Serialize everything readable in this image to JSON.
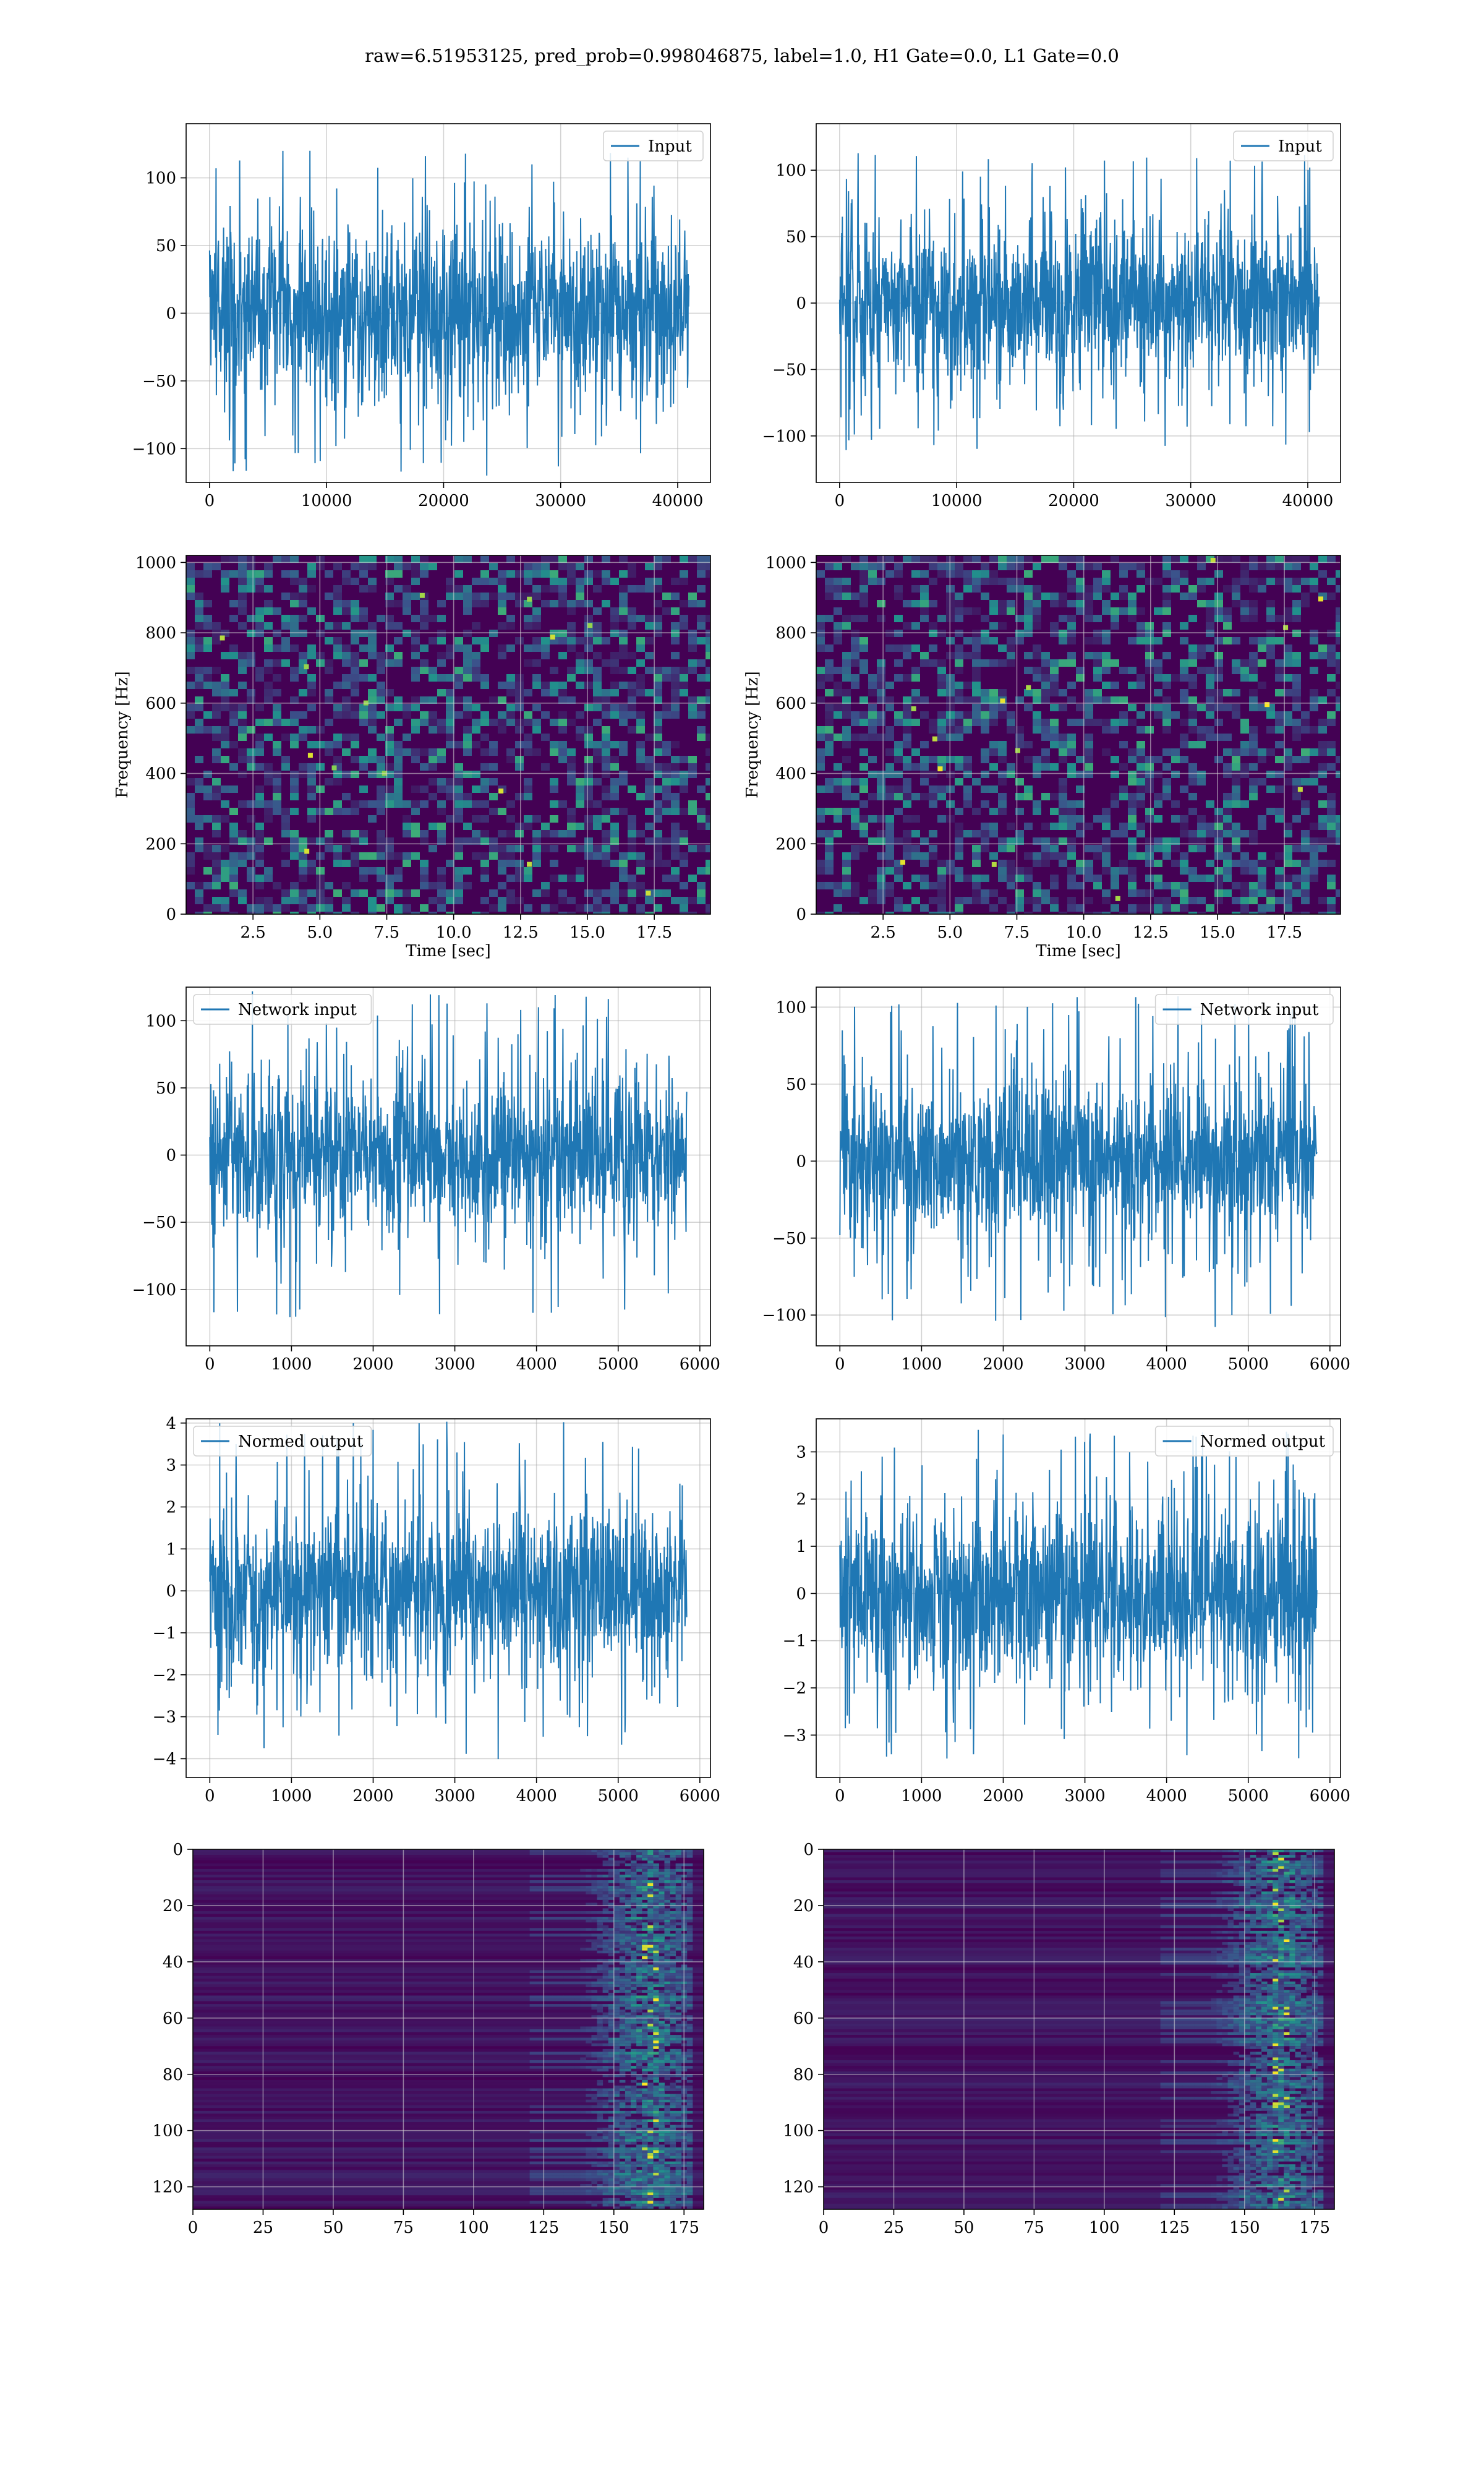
{
  "figure": {
    "title": "raw=6.51953125, pred_prob=0.998046875, label=1.0, H1 Gate=0.0, L1 Gate=0.0"
  },
  "colors": {
    "signal": "#1f77b4",
    "viridis_low": "#440154",
    "grid": "#b0b0b0"
  },
  "chart_data": [
    {
      "id": "input-left",
      "type": "line",
      "title": "",
      "xlabel": "",
      "ylabel": "",
      "legend": "top-right",
      "grid": true,
      "series": [
        {
          "name": "Input",
          "samples": 40960,
          "amp": 32,
          "peak": 120
        }
      ],
      "xlim": [
        -2000,
        42800
      ],
      "ylim": [
        -125,
        140
      ],
      "xticks": [
        "0",
        "10000",
        "20000",
        "30000",
        "40000"
      ],
      "xtick_values": [
        0,
        10000,
        20000,
        30000,
        40000
      ],
      "yticks": [
        "−100",
        "−50",
        "0",
        "50",
        "100"
      ],
      "ytick_values": [
        -100,
        -50,
        0,
        50,
        100
      ]
    },
    {
      "id": "input-right",
      "type": "line",
      "title": "",
      "xlabel": "",
      "ylabel": "",
      "legend": "top-right",
      "grid": true,
      "series": [
        {
          "name": "Input",
          "samples": 40960,
          "amp": 30,
          "peak": 113
        }
      ],
      "xlim": [
        -2000,
        42800
      ],
      "ylim": [
        -135,
        135
      ],
      "xticks": [
        "0",
        "10000",
        "20000",
        "30000",
        "40000"
      ],
      "xtick_values": [
        0,
        10000,
        20000,
        30000,
        40000
      ],
      "yticks": [
        "−100",
        "−50",
        "0",
        "50",
        "100"
      ],
      "ytick_values": [
        -100,
        -50,
        0,
        50,
        100
      ]
    },
    {
      "id": "spectrogram-left",
      "type": "heatmap",
      "title": "",
      "xlabel": "Time [sec]",
      "ylabel": "Frequency [Hz]",
      "grid": true,
      "xlim": [
        0,
        19.6
      ],
      "ylim": [
        0,
        1020
      ],
      "xticks": [
        "2.5",
        "5.0",
        "7.5",
        "10.0",
        "12.5",
        "15.0",
        "17.5"
      ],
      "xtick_values": [
        2.5,
        5.0,
        7.5,
        10.0,
        12.5,
        15.0,
        17.5
      ],
      "yticks": [
        "0",
        "200",
        "400",
        "600",
        "800",
        "1000"
      ],
      "ytick_values": [
        0,
        200,
        400,
        600,
        800,
        1000
      ]
    },
    {
      "id": "spectrogram-right",
      "type": "heatmap",
      "title": "",
      "xlabel": "Time [sec]",
      "ylabel": "Frequency [Hz]",
      "grid": true,
      "xlim": [
        0,
        19.6
      ],
      "ylim": [
        0,
        1020
      ],
      "xticks": [
        "2.5",
        "5.0",
        "7.5",
        "10.0",
        "12.5",
        "15.0",
        "17.5"
      ],
      "xtick_values": [
        2.5,
        5.0,
        7.5,
        10.0,
        12.5,
        15.0,
        17.5
      ],
      "yticks": [
        "0",
        "200",
        "400",
        "600",
        "800",
        "1000"
      ],
      "ytick_values": [
        0,
        200,
        400,
        600,
        800,
        1000
      ]
    },
    {
      "id": "network-input-left",
      "type": "line",
      "title": "",
      "xlabel": "",
      "ylabel": "",
      "legend": "top-left",
      "grid": true,
      "series": [
        {
          "name": "Network input",
          "samples": 5840,
          "amp": 28,
          "peak": 122
        }
      ],
      "xlim": [
        -290,
        6130
      ],
      "ylim": [
        -142,
        125
      ],
      "xticks": [
        "0",
        "1000",
        "2000",
        "3000",
        "4000",
        "5000",
        "6000"
      ],
      "xtick_values": [
        0,
        1000,
        2000,
        3000,
        4000,
        5000,
        6000
      ],
      "yticks": [
        "−100",
        "−50",
        "0",
        "50",
        "100"
      ],
      "ytick_values": [
        -100,
        -50,
        0,
        50,
        100
      ]
    },
    {
      "id": "network-input-right",
      "type": "line",
      "title": "",
      "xlabel": "",
      "ylabel": "",
      "legend": "top-right",
      "grid": true,
      "series": [
        {
          "name": "Network input",
          "samples": 5840,
          "amp": 26,
          "peak": 108
        }
      ],
      "xlim": [
        -290,
        6130
      ],
      "ylim": [
        -120,
        113
      ],
      "xticks": [
        "0",
        "1000",
        "2000",
        "3000",
        "4000",
        "5000",
        "6000"
      ],
      "xtick_values": [
        0,
        1000,
        2000,
        3000,
        4000,
        5000,
        6000
      ],
      "yticks": [
        "−100",
        "−50",
        "0",
        "50",
        "100"
      ],
      "ytick_values": [
        -100,
        -50,
        0,
        50,
        100
      ]
    },
    {
      "id": "normed-output-left",
      "type": "line",
      "title": "",
      "xlabel": "",
      "ylabel": "",
      "legend": "top-left",
      "grid": true,
      "series": [
        {
          "name": "Normed output",
          "samples": 5840,
          "amp": 0.95,
          "peak": 4.05
        }
      ],
      "xlim": [
        -290,
        6130
      ],
      "ylim": [
        -4.45,
        4.1
      ],
      "xticks": [
        "0",
        "1000",
        "2000",
        "3000",
        "4000",
        "5000",
        "6000"
      ],
      "xtick_values": [
        0,
        1000,
        2000,
        3000,
        4000,
        5000,
        6000
      ],
      "yticks": [
        "−4",
        "−3",
        "−2",
        "−1",
        "0",
        "1",
        "2",
        "3",
        "4"
      ],
      "ytick_values": [
        -4,
        -3,
        -2,
        -1,
        0,
        1,
        2,
        3,
        4
      ]
    },
    {
      "id": "normed-output-right",
      "type": "line",
      "title": "",
      "xlabel": "",
      "ylabel": "",
      "legend": "top-right",
      "grid": true,
      "series": [
        {
          "name": "Normed output",
          "samples": 5840,
          "amp": 0.95,
          "peak": 3.5
        }
      ],
      "xlim": [
        -290,
        6130
      ],
      "ylim": [
        -3.9,
        3.7
      ],
      "xticks": [
        "0",
        "1000",
        "2000",
        "3000",
        "4000",
        "5000",
        "6000"
      ],
      "xtick_values": [
        0,
        1000,
        2000,
        3000,
        4000,
        5000,
        6000
      ],
      "yticks": [
        "−3",
        "−2",
        "−1",
        "0",
        "1",
        "2",
        "3"
      ],
      "ytick_values": [
        -3,
        -2,
        -1,
        0,
        1,
        2,
        3
      ]
    },
    {
      "id": "feature-map-left",
      "type": "heatmap",
      "title": "",
      "xlabel": "",
      "ylabel": "",
      "grid": true,
      "xlim": [
        0,
        182
      ],
      "ylim": [
        128,
        0
      ],
      "xticks": [
        "0",
        "25",
        "50",
        "75",
        "100",
        "125",
        "150",
        "175"
      ],
      "xtick_values": [
        0,
        25,
        50,
        75,
        100,
        125,
        150,
        175
      ],
      "yticks": [
        "0",
        "20",
        "40",
        "60",
        "80",
        "100",
        "120"
      ],
      "ytick_values": [
        0,
        20,
        40,
        60,
        80,
        100,
        120
      ]
    },
    {
      "id": "feature-map-right",
      "type": "heatmap",
      "title": "",
      "xlabel": "",
      "ylabel": "",
      "grid": true,
      "xlim": [
        0,
        182
      ],
      "ylim": [
        128,
        0
      ],
      "xticks": [
        "0",
        "25",
        "50",
        "75",
        "100",
        "125",
        "150",
        "175"
      ],
      "xtick_values": [
        0,
        25,
        50,
        75,
        100,
        125,
        150,
        175
      ],
      "yticks": [
        "0",
        "20",
        "40",
        "60",
        "80",
        "100",
        "120"
      ],
      "ytick_values": [
        0,
        20,
        40,
        60,
        80,
        100,
        120
      ]
    }
  ]
}
